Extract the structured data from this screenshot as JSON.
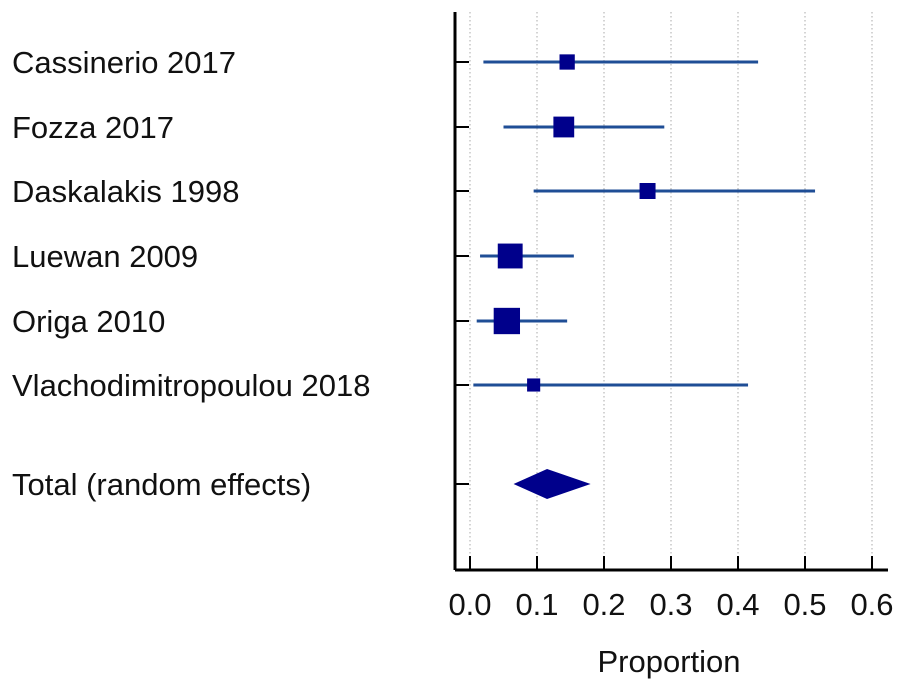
{
  "chart_data": {
    "type": "forest",
    "xlabel": "Proportion",
    "xlim": [
      0,
      0.62
    ],
    "xticks": [
      "0.0",
      "0.1",
      "0.2",
      "0.3",
      "0.4",
      "0.5",
      "0.6"
    ],
    "xtick_values": [
      0,
      0.1,
      0.2,
      0.3,
      0.4,
      0.5,
      0.6
    ],
    "grid": "vertical-dotted",
    "studies": [
      {
        "label": "Cassinerio 2017",
        "estimate": 0.145,
        "ci_low": 0.02,
        "ci_high": 0.43,
        "weight": 0.22
      },
      {
        "label": "Fozza 2017",
        "estimate": 0.14,
        "ci_low": 0.05,
        "ci_high": 0.29,
        "weight": 0.45
      },
      {
        "label": "Daskalakis 1998",
        "estimate": 0.265,
        "ci_low": 0.095,
        "ci_high": 0.515,
        "weight": 0.25
      },
      {
        "label": "Luewan 2009",
        "estimate": 0.06,
        "ci_low": 0.015,
        "ci_high": 0.155,
        "weight": 0.62
      },
      {
        "label": "Origa 2010",
        "estimate": 0.055,
        "ci_low": 0.01,
        "ci_high": 0.145,
        "weight": 0.68
      },
      {
        "label": "Vlachodimitropoulou 2018",
        "estimate": 0.095,
        "ci_low": 0.005,
        "ci_high": 0.415,
        "weight": 0.13
      }
    ],
    "total": {
      "label": "Total (random effects)",
      "estimate": 0.115,
      "ci_low": 0.065,
      "ci_high": 0.18
    },
    "colors": {
      "marker": "#00008b",
      "ci_line": "#1f4e96",
      "axis": "#000000",
      "grid": "#aaaaaa"
    }
  }
}
